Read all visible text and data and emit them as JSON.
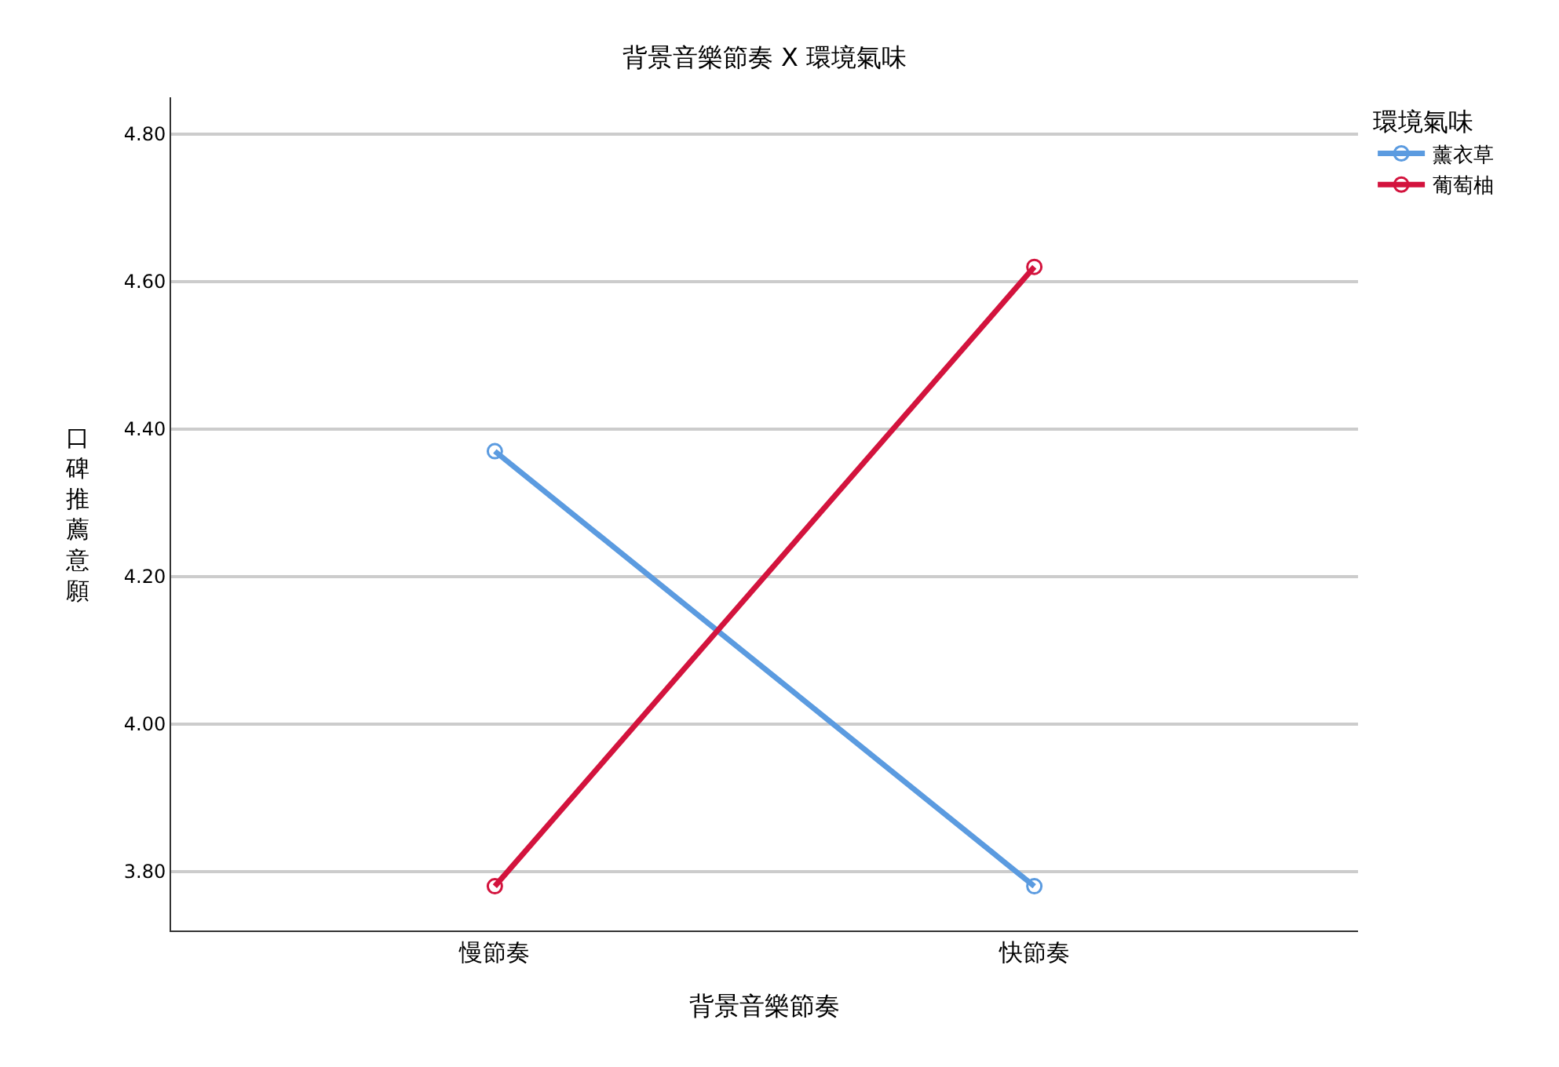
{
  "chart_data": {
    "type": "line",
    "title": "背景音樂節奏 X 環境氣味",
    "xlabel": "背景音樂節奏",
    "ylabel": "口碑推薦意願",
    "legend_title": "環境氣味",
    "categories": [
      "慢節奏",
      "快節奏"
    ],
    "series": [
      {
        "name": "薰衣草",
        "color": "#5b9be0",
        "values": [
          4.37,
          3.78
        ]
      },
      {
        "name": "葡萄柚",
        "color": "#d3133d",
        "values": [
          3.78,
          4.62
        ]
      }
    ],
    "ylim": [
      3.72,
      4.85
    ],
    "yticks": [
      {
        "value": 3.8,
        "label": "3.80"
      },
      {
        "value": 4.0,
        "label": "4.00"
      },
      {
        "value": 4.2,
        "label": "4.20"
      },
      {
        "value": 4.4,
        "label": "4.40"
      },
      {
        "value": 4.6,
        "label": "4.60"
      },
      {
        "value": 4.8,
        "label": "4.80"
      }
    ],
    "grid": "y",
    "legend": "top right",
    "marker": "circle",
    "line_style": "solid"
  }
}
